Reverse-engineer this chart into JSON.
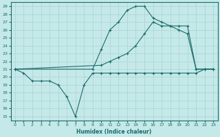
{
  "xlabel": "Humidex (Indice chaleur)",
  "xlim": [
    -0.5,
    23.5
  ],
  "ylim": [
    14.5,
    29.5
  ],
  "xticks": [
    0,
    1,
    2,
    3,
    4,
    5,
    6,
    7,
    8,
    9,
    10,
    11,
    12,
    13,
    14,
    15,
    16,
    17,
    18,
    19,
    20,
    21,
    22,
    23
  ],
  "yticks": [
    15,
    16,
    17,
    18,
    19,
    20,
    21,
    22,
    23,
    24,
    25,
    26,
    27,
    28,
    29
  ],
  "bg_color": "#c5e8e8",
  "grid_color": "#a8d4d4",
  "line_color": "#1a6b6b",
  "line1_x": [
    0,
    1,
    2,
    3,
    4,
    5,
    6,
    7,
    8,
    9,
    10,
    11,
    12,
    13,
    14,
    15,
    16,
    17,
    18,
    19,
    20,
    21,
    22,
    23
  ],
  "line1_y": [
    21,
    20.5,
    19.5,
    19.5,
    19.5,
    19,
    17.5,
    15.0,
    19.0,
    20.5,
    20.5,
    20.5,
    20.5,
    20.5,
    20.5,
    20.5,
    20.5,
    20.5,
    20.5,
    20.5,
    20.5,
    20.5,
    21,
    21
  ],
  "line2_x": [
    0,
    10,
    11,
    12,
    13,
    14,
    15,
    16,
    17,
    18,
    19,
    20,
    21,
    22,
    23
  ],
  "line2_y": [
    21,
    21.5,
    22.0,
    22.5,
    23.0,
    24.0,
    25.5,
    27.0,
    26.5,
    26.5,
    26.5,
    26.5,
    21,
    21,
    21
  ],
  "line3_x": [
    0,
    9,
    10,
    11,
    12,
    13,
    14,
    15,
    16,
    17,
    18,
    19,
    20,
    21,
    22,
    23
  ],
  "line3_y": [
    21,
    21,
    23.5,
    26.0,
    27.0,
    28.5,
    29.0,
    29.0,
    27.5,
    27.0,
    26.5,
    26.0,
    25.5,
    21,
    21,
    21
  ]
}
